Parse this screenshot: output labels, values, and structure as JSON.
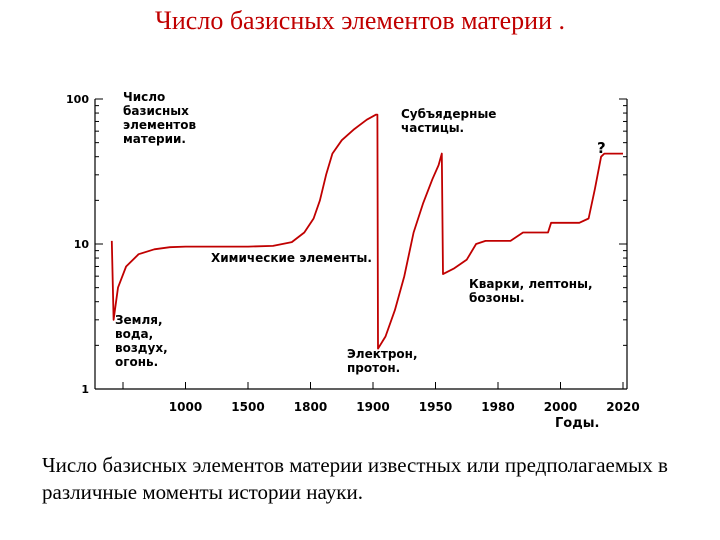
{
  "slide": {
    "title": "Число базисных элементов материи .",
    "caption": "Число базисных элементов материи известных или предполагаемых в различные моменты истории науки."
  },
  "chart_data": {
    "type": "line",
    "title": "",
    "xlabel": "Годы.",
    "ylabel": "",
    "y_scale": "log",
    "ylim": [
      1,
      100
    ],
    "grid": false,
    "line_color": "#c00000",
    "x_ticks": [
      {
        "label": "",
        "pos": 0
      },
      {
        "label": "1000",
        "pos": 1
      },
      {
        "label": "1500",
        "pos": 2
      },
      {
        "label": "1800",
        "pos": 3
      },
      {
        "label": "1900",
        "pos": 4
      },
      {
        "label": "1950",
        "pos": 5
      },
      {
        "label": "1980",
        "pos": 6
      },
      {
        "label": "2000",
        "pos": 7
      },
      {
        "label": "2020",
        "pos": 8
      }
    ],
    "y_ticks": [
      {
        "label": "100",
        "value": 100
      },
      {
        "label": "10",
        "value": 10
      },
      {
        "label": "1",
        "value": 1
      }
    ],
    "series": [
      {
        "name": "",
        "points": [
          [
            -0.18,
            10.5
          ],
          [
            -0.15,
            3.0
          ],
          [
            -0.08,
            5.0
          ],
          [
            0.05,
            7.0
          ],
          [
            0.25,
            8.5
          ],
          [
            0.5,
            9.2
          ],
          [
            0.75,
            9.5
          ],
          [
            1.0,
            9.6
          ],
          [
            1.5,
            9.6
          ],
          [
            2.0,
            9.6
          ],
          [
            2.4,
            9.7
          ],
          [
            2.7,
            10.3
          ],
          [
            2.9,
            12
          ],
          [
            3.05,
            15
          ],
          [
            3.15,
            20
          ],
          [
            3.25,
            30
          ],
          [
            3.35,
            42
          ],
          [
            3.5,
            52
          ],
          [
            3.7,
            62
          ],
          [
            3.9,
            72
          ],
          [
            4.05,
            78
          ],
          [
            4.07,
            78
          ],
          [
            4.08,
            1.9
          ],
          [
            4.2,
            2.3
          ],
          [
            4.35,
            3.5
          ],
          [
            4.5,
            6
          ],
          [
            4.65,
            12
          ],
          [
            4.8,
            19
          ],
          [
            4.95,
            28
          ],
          [
            5.05,
            35
          ],
          [
            5.1,
            42
          ],
          [
            5.12,
            6.2
          ],
          [
            5.3,
            6.8
          ],
          [
            5.5,
            7.8
          ],
          [
            5.65,
            10
          ],
          [
            5.8,
            10.5
          ],
          [
            6.2,
            10.5
          ],
          [
            6.4,
            12
          ],
          [
            6.8,
            12
          ],
          [
            6.85,
            14
          ],
          [
            7.3,
            14
          ],
          [
            7.45,
            15
          ],
          [
            7.55,
            24
          ],
          [
            7.65,
            40
          ],
          [
            7.7,
            42
          ],
          [
            8.0,
            42
          ]
        ]
      }
    ],
    "annotations": [
      {
        "lines": [
          "Число",
          "базисных",
          "элементов",
          "материи."
        ]
      },
      {
        "lines": [
          "Субъядерные",
          "частицы."
        ]
      },
      {
        "lines": [
          "?"
        ]
      },
      {
        "lines": [
          "Химические элементы."
        ]
      },
      {
        "lines": [
          "Кварки, лептоны,",
          "бозоны."
        ]
      },
      {
        "lines": [
          "Земля,",
          "вода,",
          "воздух,",
          "огонь."
        ]
      },
      {
        "lines": [
          "Электрон,",
          "протон."
        ]
      }
    ]
  }
}
